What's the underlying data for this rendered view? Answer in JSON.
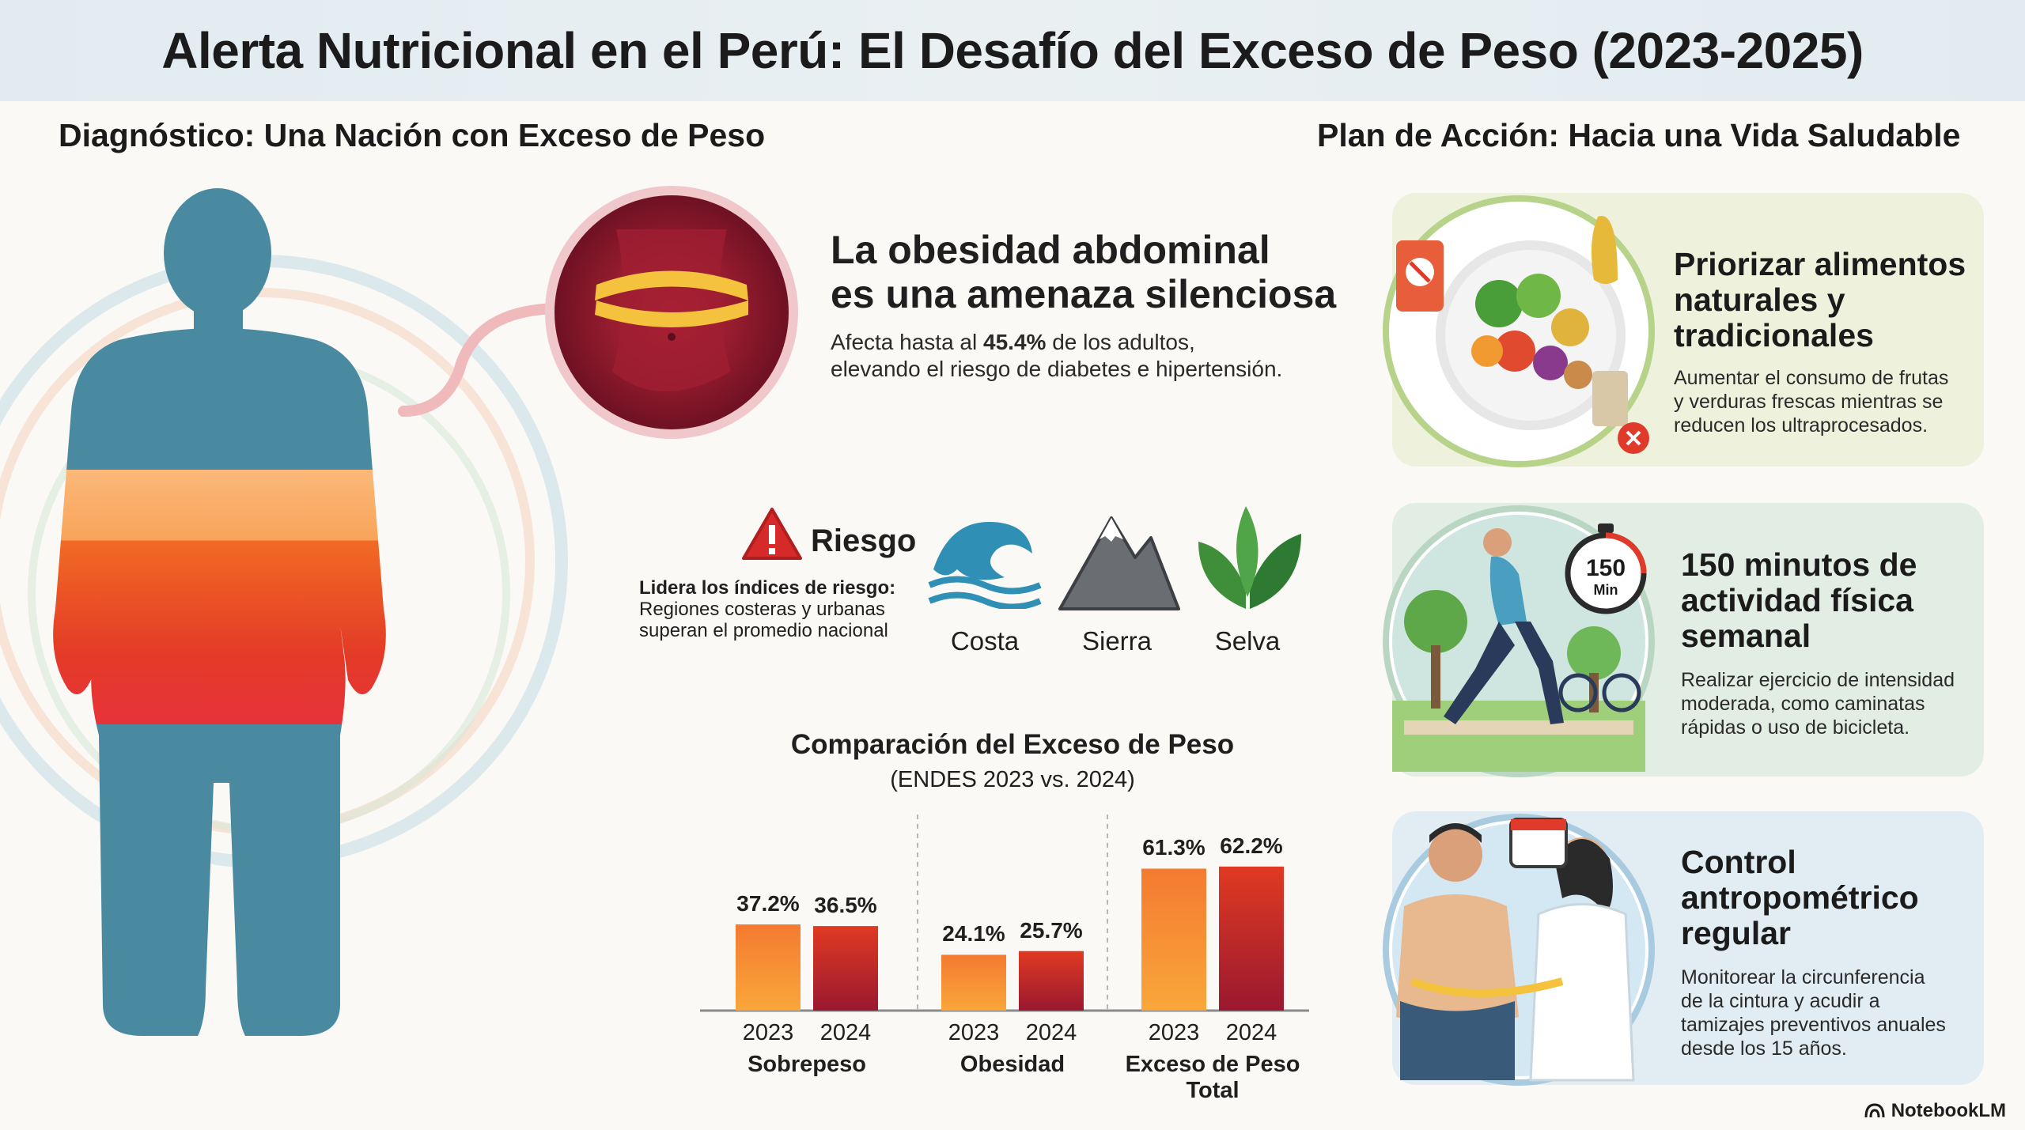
{
  "title": "Alerta Nutricional en el Perú: El Desafío del Exceso de Peso (2023-2025)",
  "left_section": {
    "heading": "Diagnóstico: Una Nación con Exceso de Peso",
    "abdominal": {
      "title_line1": "La obesidad abdominal",
      "title_line2": "es una amenaza silenciosa",
      "text_prefix": "Afecta hasta al ",
      "text_value": "45.4%",
      "text_suffix": " de los adultos,",
      "text_line2": "elevando el riesgo de diabetes e hipertensión."
    },
    "risk": {
      "label": "Riesgo",
      "lead": "Lidera los índices de riesgo:",
      "line2": "Regiones costeras y urbanas",
      "line3": "superan el promedio nacional",
      "regions": [
        "Costa",
        "Sierra",
        "Selva"
      ]
    }
  },
  "chart_data": {
    "type": "bar",
    "title": "Comparación del Exceso de Peso",
    "subtitle": "(ENDES 2023 vs. 2024)",
    "categories": [
      "Sobrepeso",
      "Obesidad",
      "Exceso de Peso Total"
    ],
    "category_lines": [
      [
        "Sobrepeso"
      ],
      [
        "Obesidad"
      ],
      [
        "Exceso de Peso",
        "Total"
      ]
    ],
    "years": [
      "2023",
      "2024"
    ],
    "series": [
      {
        "name": "2023",
        "values": [
          37.2,
          24.1,
          61.3
        ],
        "labels": [
          "37.2%",
          "24.1%",
          "61.3%"
        ],
        "color_top": "#f47a30",
        "color_bottom": "#f9a73a"
      },
      {
        "name": "2024",
        "values": [
          36.5,
          25.7,
          62.2
        ],
        "labels": [
          "36.5%",
          "25.7%",
          "62.2%"
        ],
        "color_top": "#e03a22",
        "color_bottom": "#9a1830"
      }
    ],
    "ylim": [
      0,
      70
    ]
  },
  "right_section": {
    "heading": "Plan de Acción: Hacia una Vida Saludable",
    "cards": [
      {
        "title_lines": [
          "Priorizar alimentos",
          "naturales y",
          "tradicionales"
        ],
        "text_lines": [
          "Aumentar el consumo de frutas",
          "y verduras frescas mientras se",
          "reducen los ultraprocesados."
        ],
        "bg": "#eef2dc"
      },
      {
        "title_lines": [
          "150 minutos de",
          "actividad física",
          "semanal"
        ],
        "text_lines": [
          "Realizar ejercicio de intensidad",
          "moderada, como caminatas",
          "rápidas o uso de bicicleta."
        ],
        "bg": "#e2eee4",
        "timer_value": "150",
        "timer_unit": "Min"
      },
      {
        "title_lines": [
          "Control",
          "antropométrico",
          "regular"
        ],
        "text_lines": [
          "Monitorear la circunferencia",
          "de la cintura y acudir a",
          "tamizajes preventivos anuales",
          "desde los 15 años."
        ],
        "bg": "#e1edf3"
      }
    ]
  },
  "footer": {
    "brand": "NotebookLM"
  },
  "icons": [
    "body-silhouette-icon",
    "waist-measure-icon",
    "warning-icon",
    "wave-icon",
    "mountain-icon",
    "leaf-icon",
    "food-plate-icon",
    "runner-icon",
    "stopwatch-icon",
    "bicycle-icon",
    "doctor-measure-icon",
    "calendar-icon",
    "notebooklm-logo-icon"
  ],
  "colors": {
    "accent_orange": "#f47a30",
    "accent_red": "#c8242a",
    "body_blue": "#4a8aa0"
  }
}
